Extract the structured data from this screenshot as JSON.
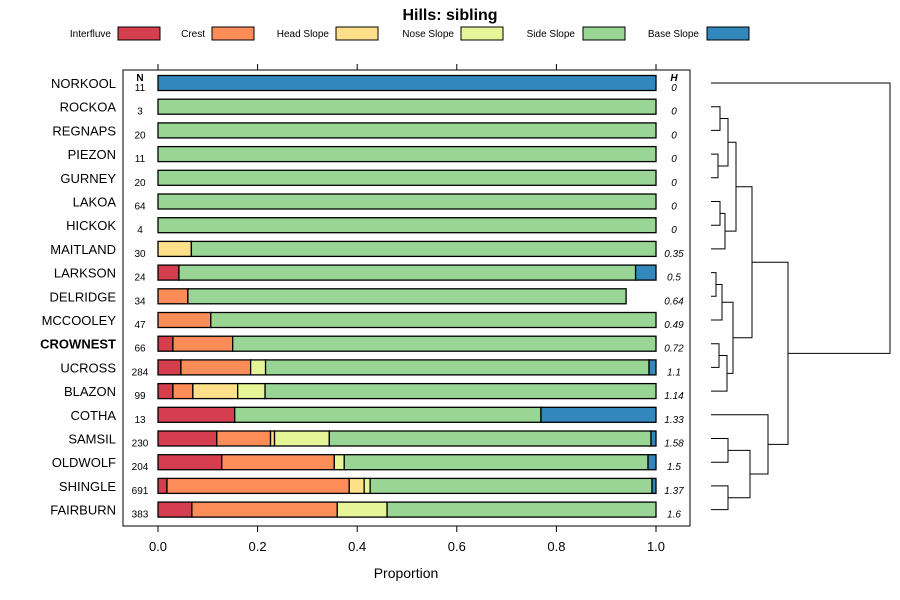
{
  "chart_data": {
    "type": "bar",
    "stacked": true,
    "orientation": "horizontal",
    "title": "Hills: sibling",
    "xlabel": "Proportion",
    "ylabel": "",
    "xlim": [
      0,
      1
    ],
    "xticks": [
      "0.0",
      "0.2",
      "0.4",
      "0.6",
      "0.8",
      "1.0"
    ],
    "n_header": "N",
    "h_header": "H",
    "highlight": "CROWNEST",
    "legend": [
      {
        "name": "Interfluve",
        "color": "#d53e4f"
      },
      {
        "name": "Crest",
        "color": "#fc8d59"
      },
      {
        "name": "Head Slope",
        "color": "#fee08b"
      },
      {
        "name": "Nose Slope",
        "color": "#e6f598"
      },
      {
        "name": "Side Slope",
        "color": "#99d594"
      },
      {
        "name": "Base Slope",
        "color": "#3288bd"
      }
    ],
    "rows": [
      {
        "name": "NORKOOL",
        "n": "11",
        "h": "0",
        "values": [
          0,
          0,
          0,
          0,
          0,
          1.0
        ]
      },
      {
        "name": "ROCKOA",
        "n": "3",
        "h": "0",
        "values": [
          0,
          0,
          0,
          0,
          1.0,
          0
        ]
      },
      {
        "name": "REGNAPS",
        "n": "20",
        "h": "0",
        "values": [
          0,
          0,
          0,
          0,
          1.0,
          0
        ]
      },
      {
        "name": "PIEZON",
        "n": "11",
        "h": "0",
        "values": [
          0,
          0,
          0,
          0,
          1.0,
          0
        ]
      },
      {
        "name": "GURNEY",
        "n": "20",
        "h": "0",
        "values": [
          0,
          0,
          0,
          0,
          1.0,
          0
        ]
      },
      {
        "name": "LAKOA",
        "n": "64",
        "h": "0",
        "values": [
          0,
          0,
          0,
          0,
          1.0,
          0
        ]
      },
      {
        "name": "HICKOK",
        "n": "4",
        "h": "0",
        "values": [
          0,
          0,
          0,
          0,
          1.0,
          0
        ]
      },
      {
        "name": "MAITLAND",
        "n": "30",
        "h": "0.35",
        "values": [
          0,
          0,
          0.067,
          0,
          0.933,
          0
        ]
      },
      {
        "name": "LARKSON",
        "n": "24",
        "h": "0.5",
        "values": [
          0.042,
          0,
          0,
          0,
          0.917,
          0.041
        ]
      },
      {
        "name": "DELRIDGE",
        "n": "34",
        "h": "0.64",
        "values": [
          0,
          0.06,
          0,
          0,
          0.88,
          0
        ]
      },
      {
        "name": "MCCOOLEY",
        "n": "47",
        "h": "0.49",
        "values": [
          0,
          0.106,
          0,
          0,
          0.894,
          0
        ]
      },
      {
        "name": "CROWNEST",
        "n": "66",
        "h": "0.72",
        "values": [
          0.03,
          0.12,
          0,
          0,
          0.85,
          0
        ]
      },
      {
        "name": "UCROSS",
        "n": "284",
        "h": "1.1",
        "values": [
          0.046,
          0.14,
          0,
          0.03,
          0.77,
          0.014
        ]
      },
      {
        "name": "BLAZON",
        "n": "99",
        "h": "1.14",
        "values": [
          0.03,
          0.04,
          0.09,
          0.055,
          0.785,
          0
        ]
      },
      {
        "name": "COTHA",
        "n": "13",
        "h": "1.33",
        "values": [
          0.154,
          0,
          0,
          0,
          0.615,
          0.231
        ]
      },
      {
        "name": "SAMSIL",
        "n": "230",
        "h": "1.58",
        "values": [
          0.118,
          0.108,
          0.008,
          0.11,
          0.646,
          0.01
        ]
      },
      {
        "name": "OLDWOLF",
        "n": "204",
        "h": "1.5",
        "values": [
          0.128,
          0.226,
          0,
          0.02,
          0.61,
          0.016
        ]
      },
      {
        "name": "SHINGLE",
        "n": "691",
        "h": "1.37",
        "values": [
          0.018,
          0.366,
          0.03,
          0.012,
          0.566,
          0.008
        ]
      },
      {
        "name": "FAIRBURN",
        "n": "383",
        "h": "1.6",
        "values": [
          0.068,
          0.292,
          0,
          0.1,
          0.54,
          0
        ]
      }
    ]
  }
}
